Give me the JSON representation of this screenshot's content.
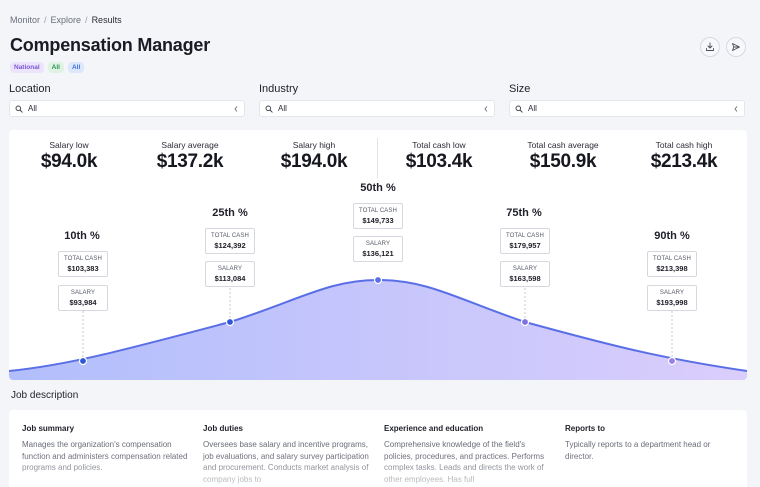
{
  "breadcrumb": [
    "Monitor",
    "Explore",
    "Results"
  ],
  "breadcrumb_sep": "/",
  "title": "Compensation Manager",
  "badges": [
    "National",
    "All",
    "All"
  ],
  "filters": [
    {
      "label": "Location",
      "value": "All"
    },
    {
      "label": "Industry",
      "value": "All"
    },
    {
      "label": "Size",
      "value": "All"
    }
  ],
  "stats": [
    {
      "label": "Salary low",
      "value": "$94.0k"
    },
    {
      "label": "Salary average",
      "value": "$137.2k"
    },
    {
      "label": "Salary high",
      "value": "$194.0k"
    },
    {
      "label": "Total cash low",
      "value": "$103.4k"
    },
    {
      "label": "Total cash average",
      "value": "$150.9k"
    },
    {
      "label": "Total cash high",
      "value": "$213.4k"
    }
  ],
  "percentiles": [
    {
      "label": "10th %",
      "total_cash_label": "TOTAL CASH",
      "total_cash": "$103,383",
      "salary_label": "SALARY",
      "salary": "$93,984"
    },
    {
      "label": "25th %",
      "total_cash_label": "TOTAL CASH",
      "total_cash": "$124,392",
      "salary_label": "SALARY",
      "salary": "$113,084"
    },
    {
      "label": "50th %",
      "total_cash_label": "TOTAL CASH",
      "total_cash": "$149,733",
      "salary_label": "SALARY",
      "salary": "$136,121"
    },
    {
      "label": "75th %",
      "total_cash_label": "TOTAL CASH",
      "total_cash": "$179,957",
      "salary_label": "SALARY",
      "salary": "$163,598"
    },
    {
      "label": "90th %",
      "total_cash_label": "TOTAL CASH",
      "total_cash": "$213,398",
      "salary_label": "SALARY",
      "salary": "$193,998"
    }
  ],
  "job_description": {
    "heading": "Job description",
    "columns": [
      {
        "title": "Job summary",
        "text": "Manages the organization's compensation function and administers compensation related programs and policies."
      },
      {
        "title": "Job duties",
        "text": "Oversees base salary and incentive programs, job evaluations, and salary survey participation and procurement. Conducts market analysis of company jobs to"
      },
      {
        "title": "Experience and education",
        "text": "Comprehensive knowledge of the field's policies, procedures, and practices. Performs complex tasks. Leads and directs the work of other employees. Has full"
      },
      {
        "title": "Reports to",
        "text": "Typically reports to a department head or director."
      }
    ]
  },
  "colors": {
    "accent": "#5a6fe6",
    "curve_fill_left": "#a9b7fb",
    "curve_fill_right": "#d6c8fb"
  },
  "icons": {
    "download": "download-icon",
    "share": "send-icon",
    "search": "search-icon",
    "chevron": "chevron-left-icon"
  }
}
